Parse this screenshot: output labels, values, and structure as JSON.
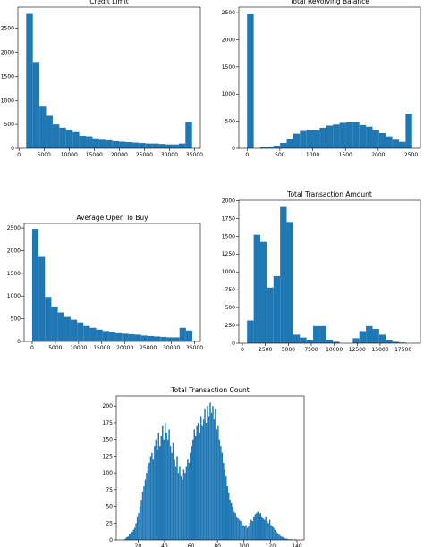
{
  "chart_data": [
    {
      "type": "histogram",
      "title": "Credit Limit",
      "color": "#1f77b4",
      "bins": [
        1438,
        2761,
        4084,
        5407,
        6730,
        8053,
        9376,
        10699,
        12022,
        13345,
        14668,
        15991,
        17314,
        18637,
        19960,
        21283,
        22606,
        23929,
        25252,
        26575,
        27898,
        29221,
        30544,
        31867,
        33190,
        34516
      ],
      "counts": [
        2800,
        1800,
        870,
        680,
        500,
        430,
        380,
        340,
        260,
        250,
        210,
        180,
        170,
        150,
        140,
        130,
        120,
        110,
        100,
        100,
        90,
        80,
        80,
        100,
        550
      ],
      "xlim": [
        -216,
        36170
      ],
      "ylim": [
        0,
        2940
      ],
      "xticks": [
        0,
        5000,
        10000,
        15000,
        20000,
        25000,
        30000,
        35000
      ],
      "yticks": [
        0,
        500,
        1000,
        1500,
        2000,
        2500
      ]
    },
    {
      "type": "histogram",
      "title": "Total Revolving Balance",
      "color": "#1f77b4",
      "bins": [
        0,
        100.68,
        201.36,
        302.04,
        402.72,
        503.4,
        604.08,
        704.76,
        805.44,
        906.12,
        1006.8,
        1107.48,
        1208.16,
        1308.84,
        1409.52,
        1510.2,
        1610.88,
        1711.56,
        1812.24,
        1912.92,
        2013.6,
        2114.28,
        2214.96,
        2315.64,
        2416.32,
        2517
      ],
      "counts": [
        2470,
        0,
        20,
        30,
        50,
        100,
        180,
        270,
        320,
        340,
        330,
        380,
        420,
        440,
        470,
        480,
        480,
        430,
        400,
        330,
        280,
        220,
        160,
        120,
        640
      ],
      "xlim": [
        -126,
        2643
      ],
      "ylim": [
        0,
        2600
      ],
      "xticks": [
        0,
        500,
        1000,
        1500,
        2000,
        2500
      ],
      "yticks": [
        0,
        500,
        1000,
        1500,
        2000,
        2500
      ]
    },
    {
      "type": "histogram",
      "title": "Average Open To Buy",
      "color": "#1f77b4",
      "bins": [
        3,
        1383.5,
        2764,
        4144.5,
        5525,
        6905.5,
        8286,
        9666.5,
        11047,
        12427.5,
        13808,
        15188.5,
        16569,
        17949.5,
        19330,
        20710.5,
        22091,
        23471.5,
        24852,
        26232.5,
        27613,
        28993.5,
        30374,
        31754.5,
        33135,
        34516
      ],
      "counts": [
        2480,
        1880,
        980,
        770,
        640,
        540,
        480,
        420,
        340,
        300,
        260,
        230,
        200,
        180,
        170,
        160,
        150,
        130,
        120,
        110,
        100,
        90,
        90,
        300,
        240
      ],
      "xlim": [
        -1722,
        36241
      ],
      "ylim": [
        0,
        2600
      ],
      "xticks": [
        0,
        5000,
        10000,
        15000,
        20000,
        25000,
        30000,
        35000
      ],
      "yticks": [
        0,
        500,
        1000,
        1500,
        2000,
        2500
      ]
    },
    {
      "type": "histogram",
      "title": "Total Transaction Amount",
      "color": "#1f77b4",
      "bins": [
        510,
        1229,
        1948,
        2667,
        3386,
        4105,
        4824,
        5543,
        6262,
        6981,
        7700,
        8419,
        9138,
        9857,
        10576,
        11295,
        12014,
        12733,
        13452,
        14171,
        14890,
        15609,
        16328,
        17047,
        17766,
        18484
      ],
      "counts": [
        320,
        1520,
        1420,
        780,
        940,
        1910,
        1700,
        120,
        80,
        50,
        240,
        240,
        50,
        20,
        0,
        0,
        70,
        170,
        240,
        200,
        120,
        50,
        20,
        10,
        0
      ],
      "xlim": [
        -389,
        19383
      ],
      "ylim": [
        0,
        2005
      ],
      "xticks": [
        0,
        2500,
        5000,
        7500,
        10000,
        12500,
        15000,
        17500
      ],
      "yticks": [
        0,
        250,
        500,
        750,
        1000,
        1250,
        1500,
        1750,
        2000
      ]
    },
    {
      "type": "histogram",
      "title": "Total Transaction Count",
      "color": "#1f77b4",
      "bins": [
        10,
        11,
        12,
        13,
        14,
        15,
        16,
        17,
        18,
        19,
        20,
        21,
        22,
        23,
        24,
        25,
        26,
        27,
        28,
        29,
        30,
        31,
        32,
        33,
        34,
        35,
        36,
        37,
        38,
        39,
        40,
        41,
        42,
        43,
        44,
        45,
        46,
        47,
        48,
        49,
        50,
        51,
        52,
        53,
        54,
        55,
        56,
        57,
        58,
        59,
        60,
        61,
        62,
        63,
        64,
        65,
        66,
        67,
        68,
        69,
        70,
        71,
        72,
        73,
        74,
        75,
        76,
        77,
        78,
        79,
        80,
        81,
        82,
        83,
        84,
        85,
        86,
        87,
        88,
        89,
        90,
        91,
        92,
        93,
        94,
        95,
        96,
        97,
        98,
        99,
        100,
        101,
        102,
        103,
        104,
        105,
        106,
        107,
        108,
        109,
        110,
        111,
        112,
        113,
        114,
        115,
        116,
        117,
        118,
        119,
        120,
        121,
        122,
        123,
        124,
        125,
        126,
        127,
        128,
        129,
        130,
        131,
        132,
        133,
        134,
        135,
        136,
        137,
        138,
        139
      ],
      "counts": [
        2,
        4,
        5,
        8,
        10,
        12,
        15,
        18,
        25,
        35,
        40,
        50,
        60,
        72,
        80,
        90,
        100,
        110,
        115,
        125,
        130,
        120,
        140,
        150,
        135,
        160,
        140,
        155,
        170,
        150,
        175,
        160,
        150,
        165,
        140,
        130,
        145,
        120,
        110,
        125,
        100,
        110,
        95,
        90,
        105,
        100,
        110,
        120,
        115,
        130,
        140,
        150,
        165,
        155,
        170,
        175,
        160,
        185,
        170,
        180,
        195,
        175,
        200,
        185,
        205,
        190,
        200,
        180,
        195,
        165,
        170,
        150,
        140,
        130,
        115,
        105,
        95,
        80,
        70,
        60,
        55,
        50,
        42,
        40,
        35,
        32,
        30,
        28,
        25,
        22,
        20,
        22,
        18,
        20,
        25,
        30,
        28,
        35,
        38,
        40,
        42,
        38,
        40,
        35,
        32,
        30,
        35,
        28,
        25,
        30,
        22,
        20,
        18,
        15,
        12,
        10,
        8,
        6,
        5,
        4,
        3,
        2,
        2,
        1,
        1,
        1,
        1,
        0,
        1
      ],
      "xlim": [
        3.55,
        145.45
      ],
      "ylim": [
        0,
        215
      ],
      "xticks": [
        20,
        40,
        60,
        80,
        100,
        120,
        140
      ],
      "yticks": [
        0,
        25,
        50,
        75,
        100,
        125,
        150,
        175,
        200
      ]
    }
  ]
}
